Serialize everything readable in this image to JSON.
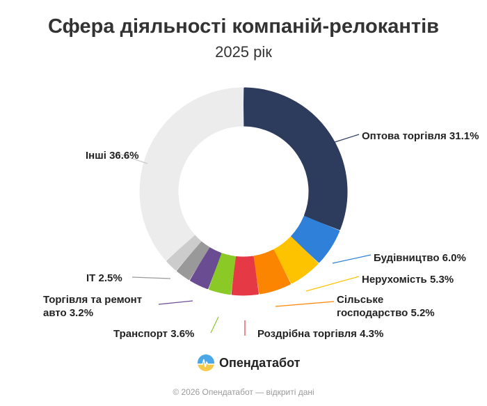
{
  "chart_data": {
    "type": "pie",
    "title": "Сфера діяльності компаній-релокантів",
    "subtitle": "2025 рік",
    "donut": true,
    "slices": [
      {
        "name": "Оптова торгівля",
        "value": 31.1,
        "label": "Оптова торгівля 31.1%",
        "color": "#2d3b5c"
      },
      {
        "name": "Будівництво",
        "value": 6.0,
        "label": "Будівництво 6.0%",
        "color": "#2f80d8"
      },
      {
        "name": "Нерухомість",
        "value": 5.3,
        "label": "Нерухомість 5.3%",
        "color": "#fdc200"
      },
      {
        "name": "Сільське господарство",
        "value": 5.2,
        "label_line1": "Сільське",
        "label_line2": "господарство 5.2%",
        "color": "#fb8500"
      },
      {
        "name": "Роздрібна торгівля",
        "value": 4.3,
        "label": "Роздрібна торгівля 4.3%",
        "color": "#e63946"
      },
      {
        "name": "Транспорт",
        "value": 3.6,
        "label": "Транспорт 3.6%",
        "color": "#8ac926"
      },
      {
        "name": "Торгівля та ремонт авто",
        "value": 3.2,
        "label_line1": "Торгівля та ремонт",
        "label_line2": "авто 3.2%",
        "color": "#6a4c93"
      },
      {
        "name": "IT",
        "value": 2.5,
        "label": "IT 2.5%",
        "color": "#999999"
      },
      {
        "name": "",
        "value": 2.2,
        "color": "#cccccc"
      },
      {
        "name": "Інші",
        "value": 36.6,
        "label": "Інші 36.6%",
        "color": "#ececec"
      }
    ]
  },
  "logo": {
    "text": "Опендатабот"
  },
  "footer": "© 2026 Опендатабот — відкриті дані"
}
